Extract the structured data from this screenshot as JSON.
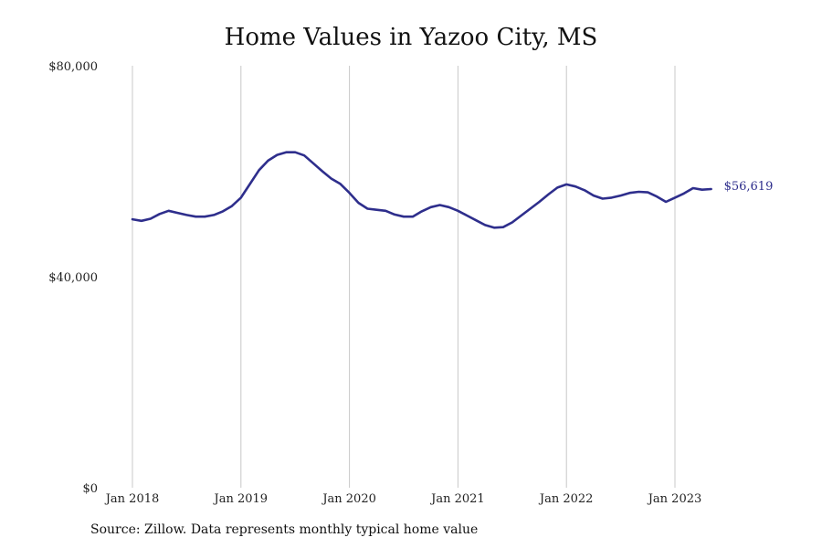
{
  "title": "Home Values in Yazoo City, MS",
  "source": "Source: Zillow. Data represents monthly typical home value",
  "chart_data": {
    "type": "line",
    "title": "Home Values in Yazoo City, MS",
    "xlabel": "",
    "ylabel": "",
    "ylim": [
      0,
      80000
    ],
    "y_ticks": [
      {
        "value": 0,
        "label": "$0"
      },
      {
        "value": 40000,
        "label": "$40,000"
      },
      {
        "value": 80000,
        "label": "$80,000"
      }
    ],
    "x_ticks": [
      {
        "date": "2018-01",
        "label": "Jan 2018"
      },
      {
        "date": "2019-01",
        "label": "Jan 2019"
      },
      {
        "date": "2020-01",
        "label": "Jan 2020"
      },
      {
        "date": "2021-01",
        "label": "Jan 2021"
      },
      {
        "date": "2022-01",
        "label": "Jan 2022"
      },
      {
        "date": "2023-01",
        "label": "Jan 2023"
      }
    ],
    "xlim": [
      "2018-01",
      "2023-11"
    ],
    "grid": "vertical",
    "line_color": "#2e2e8c",
    "end_label": "$56,619",
    "series": [
      {
        "x": [
          "2018-01",
          "2018-02",
          "2018-03",
          "2018-04",
          "2018-05",
          "2018-06",
          "2018-07",
          "2018-08",
          "2018-09",
          "2018-10",
          "2018-11",
          "2018-12",
          "2019-01",
          "2019-02",
          "2019-03",
          "2019-04",
          "2019-05",
          "2019-06",
          "2019-07",
          "2019-08",
          "2019-09",
          "2019-10",
          "2019-11",
          "2019-12",
          "2020-01",
          "2020-02",
          "2020-03",
          "2020-04",
          "2020-05",
          "2020-06",
          "2020-07",
          "2020-08",
          "2020-09",
          "2020-10",
          "2020-11",
          "2020-12",
          "2021-01",
          "2021-02",
          "2021-03",
          "2021-04",
          "2021-05",
          "2021-06",
          "2021-07",
          "2021-08",
          "2021-09",
          "2021-10",
          "2021-11",
          "2021-12",
          "2022-01",
          "2022-02",
          "2022-03",
          "2022-04",
          "2022-05",
          "2022-06",
          "2022-07",
          "2022-08",
          "2022-09",
          "2022-10",
          "2022-11",
          "2022-12",
          "2023-01",
          "2023-02",
          "2023-03",
          "2023-04",
          "2023-05"
        ],
        "values": [
          50900,
          50600,
          51000,
          51900,
          52500,
          52100,
          51700,
          51400,
          51400,
          51700,
          52400,
          53400,
          55000,
          57600,
          60200,
          62000,
          63100,
          63600,
          63600,
          63000,
          61500,
          60000,
          58600,
          57600,
          55900,
          54000,
          52900,
          52700,
          52500,
          51800,
          51400,
          51400,
          52400,
          53200,
          53600,
          53200,
          52500,
          51600,
          50700,
          49800,
          49300,
          49400,
          50300,
          51600,
          52900,
          54200,
          55600,
          56900,
          57500,
          57100,
          56400,
          55400,
          54800,
          55000,
          55400,
          55900,
          56100,
          56000,
          55200,
          54200,
          55000,
          55800,
          56800,
          56500,
          56619
        ]
      }
    ]
  }
}
